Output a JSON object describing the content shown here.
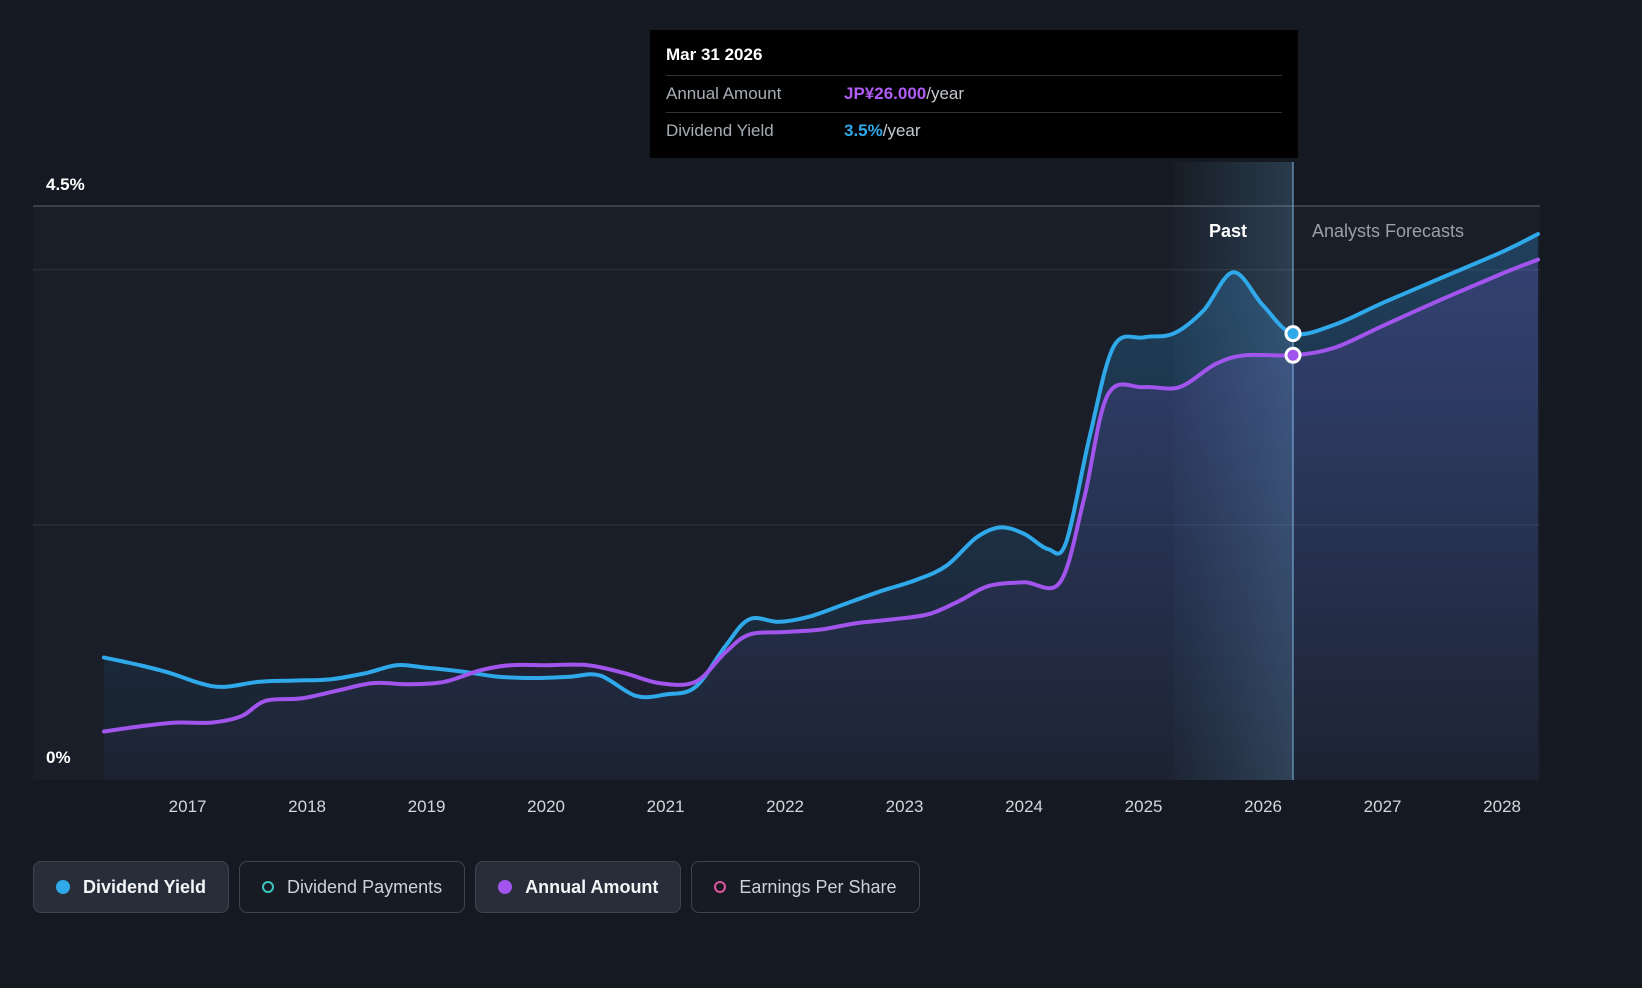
{
  "tooltip": {
    "date": "Mar 31 2026",
    "rows": [
      {
        "label": "Annual Amount",
        "value": "JP¥26.000",
        "suffix": "/year",
        "color": "#b05cf5"
      },
      {
        "label": "Dividend Yield",
        "value": "3.5%",
        "suffix": "/year",
        "color": "#2fa9e9"
      }
    ]
  },
  "chart": {
    "past_label": "Past",
    "forecast_label": "Analysts Forecasts",
    "y_axis": {
      "max_label": "4.5%",
      "min_label": "0%"
    }
  },
  "legend": {
    "items": [
      {
        "label": "Dividend Yield",
        "marker": "filled",
        "color": "#2fa9e9",
        "active": true
      },
      {
        "label": "Dividend Payments",
        "marker": "ring",
        "color": "#3ec6be",
        "active": false
      },
      {
        "label": "Annual Amount",
        "marker": "filled",
        "color": "#a155ec",
        "active": true
      },
      {
        "label": "Earnings Per Share",
        "marker": "ring",
        "color": "#e2559f",
        "active": false
      }
    ]
  },
  "chart_data": {
    "type": "area",
    "title": "Dividend yield history and forecast",
    "x_unit": "year",
    "xlim": [
      2016.2,
      2028.3
    ],
    "ylim": [
      0,
      4.5
    ],
    "x_ticks": [
      2017,
      2018,
      2019,
      2020,
      2021,
      2022,
      2023,
      2024,
      2025,
      2026,
      2027,
      2028
    ],
    "gridline_values": [
      4.5,
      4.0,
      2.0
    ],
    "band_start_year": 2025.25,
    "divider_year": 2026.25,
    "legend_position": "bottom",
    "series": [
      {
        "name": "Dividend Yield",
        "color": "#2fa9e9",
        "unit": "%",
        "marker_point": {
          "year": 2026.25,
          "value": 3.5
        },
        "points": [
          [
            2016.3,
            0.96
          ],
          [
            2016.6,
            0.9
          ],
          [
            2016.85,
            0.84
          ],
          [
            2017.1,
            0.76
          ],
          [
            2017.3,
            0.73
          ],
          [
            2017.6,
            0.77
          ],
          [
            2017.9,
            0.78
          ],
          [
            2018.2,
            0.79
          ],
          [
            2018.5,
            0.84
          ],
          [
            2018.75,
            0.9
          ],
          [
            2019.0,
            0.88
          ],
          [
            2019.3,
            0.85
          ],
          [
            2019.6,
            0.81
          ],
          [
            2019.9,
            0.8
          ],
          [
            2020.2,
            0.81
          ],
          [
            2020.45,
            0.82
          ],
          [
            2020.75,
            0.66
          ],
          [
            2021.0,
            0.67
          ],
          [
            2021.25,
            0.73
          ],
          [
            2021.5,
            1.05
          ],
          [
            2021.7,
            1.26
          ],
          [
            2021.95,
            1.24
          ],
          [
            2022.2,
            1.28
          ],
          [
            2022.5,
            1.38
          ],
          [
            2022.8,
            1.48
          ],
          [
            2023.1,
            1.57
          ],
          [
            2023.35,
            1.68
          ],
          [
            2023.6,
            1.9
          ],
          [
            2023.8,
            1.98
          ],
          [
            2024.0,
            1.93
          ],
          [
            2024.2,
            1.81
          ],
          [
            2024.35,
            1.86
          ],
          [
            2024.55,
            2.7
          ],
          [
            2024.75,
            3.4
          ],
          [
            2025.0,
            3.47
          ],
          [
            2025.25,
            3.5
          ],
          [
            2025.5,
            3.68
          ],
          [
            2025.75,
            3.98
          ],
          [
            2026.0,
            3.72
          ],
          [
            2026.25,
            3.5
          ],
          [
            2026.6,
            3.57
          ],
          [
            2027.0,
            3.74
          ],
          [
            2027.5,
            3.94
          ],
          [
            2028.0,
            4.14
          ],
          [
            2028.3,
            4.28
          ]
        ]
      },
      {
        "name": "Annual Amount",
        "color": "#a155ec",
        "unit": "% scale (JP¥ amount plotted)",
        "marker_point": {
          "year": 2026.25,
          "value": 3.33
        },
        "points": [
          [
            2016.3,
            0.38
          ],
          [
            2016.6,
            0.42
          ],
          [
            2016.9,
            0.45
          ],
          [
            2017.2,
            0.45
          ],
          [
            2017.45,
            0.5
          ],
          [
            2017.65,
            0.62
          ],
          [
            2017.95,
            0.64
          ],
          [
            2018.25,
            0.7
          ],
          [
            2018.55,
            0.76
          ],
          [
            2018.85,
            0.75
          ],
          [
            2019.15,
            0.77
          ],
          [
            2019.45,
            0.86
          ],
          [
            2019.7,
            0.9
          ],
          [
            2020.0,
            0.9
          ],
          [
            2020.35,
            0.9
          ],
          [
            2020.65,
            0.84
          ],
          [
            2020.95,
            0.76
          ],
          [
            2021.25,
            0.77
          ],
          [
            2021.5,
            1.0
          ],
          [
            2021.7,
            1.14
          ],
          [
            2022.0,
            1.16
          ],
          [
            2022.3,
            1.18
          ],
          [
            2022.6,
            1.23
          ],
          [
            2022.9,
            1.26
          ],
          [
            2023.2,
            1.3
          ],
          [
            2023.45,
            1.4
          ],
          [
            2023.7,
            1.52
          ],
          [
            2024.0,
            1.55
          ],
          [
            2024.3,
            1.55
          ],
          [
            2024.5,
            2.2
          ],
          [
            2024.7,
            3.02
          ],
          [
            2025.0,
            3.08
          ],
          [
            2025.3,
            3.08
          ],
          [
            2025.6,
            3.26
          ],
          [
            2025.85,
            3.33
          ],
          [
            2026.25,
            3.33
          ],
          [
            2026.6,
            3.39
          ],
          [
            2027.0,
            3.56
          ],
          [
            2027.5,
            3.77
          ],
          [
            2028.0,
            3.97
          ],
          [
            2028.3,
            4.08
          ]
        ]
      }
    ]
  }
}
